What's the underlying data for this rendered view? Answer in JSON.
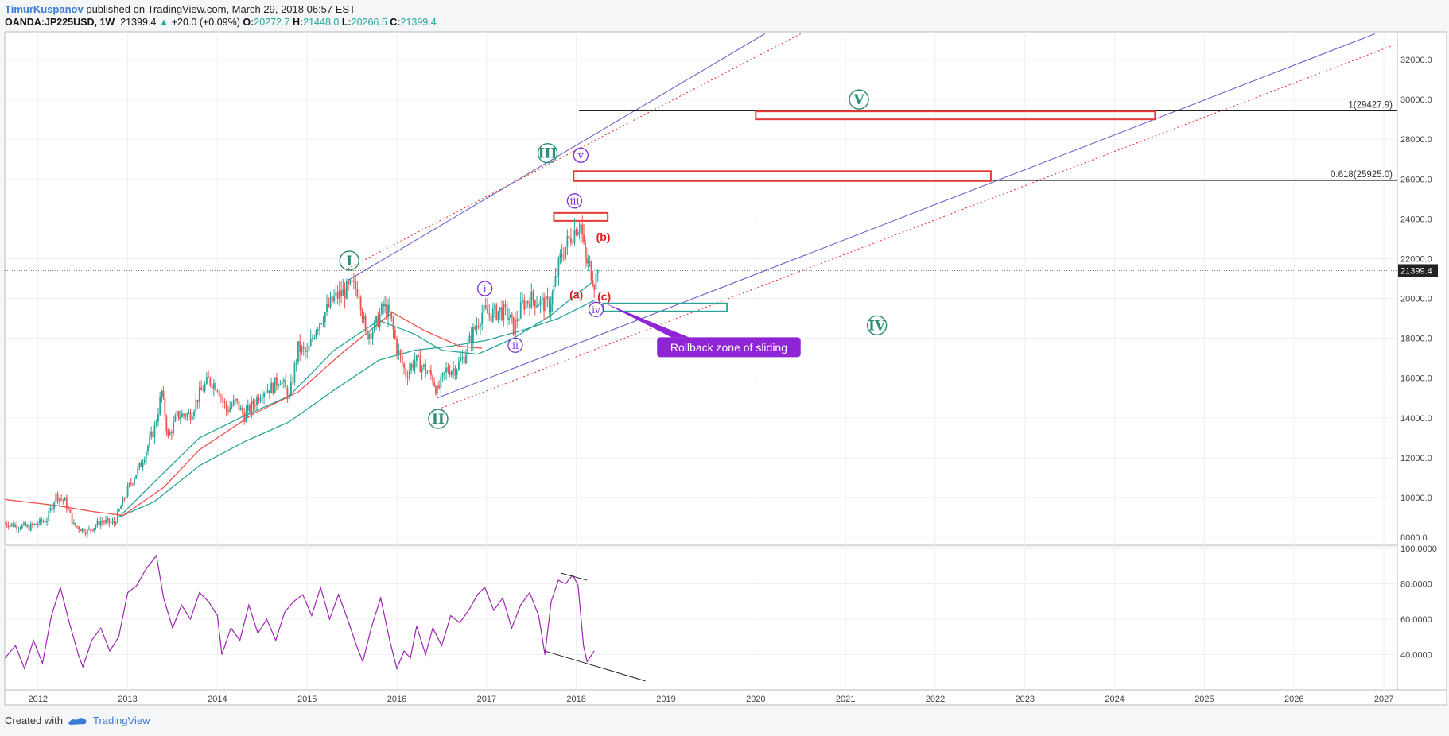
{
  "header": {
    "author": "TimurKuspanov",
    "published_text": "published on TradingView.com, March 29, 2018 06:57 EST",
    "symbol": "OANDA:JP225USD, 1W",
    "last": "21399.4",
    "change": "+20.0 (+0.09%)",
    "o_label": "O:",
    "o": "20272.7",
    "h_label": "H:",
    "h": "21448.0",
    "l_label": "L:",
    "l": "20266.5",
    "c_label": "C:",
    "c": "21399.4"
  },
  "footer": {
    "created_with": "Created with",
    "brand": "TradingView"
  },
  "colors": {
    "up": "#26a69a",
    "down": "#ef5350",
    "ma_fast": "#26a69a",
    "ma_slow": "#ef5350",
    "rsi": "#9c27b0",
    "channel": "#6c63c9",
    "channel_outer": "#e53935",
    "wave_green": "#2e8b75",
    "wave_purple": "#7b2fd6",
    "callout": "#8e24d6",
    "zone_green": "#26a69a",
    "zone_red": "#e53935"
  },
  "chart_data": {
    "type": "candlestick",
    "timeframe": "1W",
    "x_ticks": [
      "2012",
      "2013",
      "2014",
      "2015",
      "2016",
      "2017",
      "2018",
      "2019",
      "2020",
      "2021",
      "2022",
      "2023",
      "2024",
      "2025",
      "2026",
      "2027"
    ],
    "x_range": [
      2011.63,
      2027.15
    ],
    "price_axis": {
      "ylim": [
        7600,
        33400
      ],
      "ticks": [
        "8000.0",
        "10000.0",
        "12000.0",
        "14000.0",
        "16000.0",
        "18000.0",
        "20000.0",
        "22000.0",
        "24000.0",
        "26000.0",
        "28000.0",
        "30000.0",
        "32000.0"
      ]
    },
    "last_price_label": "21399.4",
    "last_price": 21399.4,
    "price_path": [
      [
        2011.63,
        8700
      ],
      [
        2011.9,
        8500
      ],
      [
        2012.1,
        8900
      ],
      [
        2012.2,
        10100
      ],
      [
        2012.3,
        9800
      ],
      [
        2012.4,
        8600
      ],
      [
        2012.55,
        8300
      ],
      [
        2012.7,
        8800
      ],
      [
        2012.85,
        8700
      ],
      [
        2013.0,
        10400
      ],
      [
        2013.15,
        11700
      ],
      [
        2013.3,
        13500
      ],
      [
        2013.38,
        15300
      ],
      [
        2013.45,
        13000
      ],
      [
        2013.55,
        14100
      ],
      [
        2013.7,
        14200
      ],
      [
        2013.8,
        15200
      ],
      [
        2013.9,
        15900
      ],
      [
        2014.0,
        15600
      ],
      [
        2014.1,
        14400
      ],
      [
        2014.2,
        14800
      ],
      [
        2014.3,
        14100
      ],
      [
        2014.4,
        14700
      ],
      [
        2014.5,
        15400
      ],
      [
        2014.6,
        15500
      ],
      [
        2014.7,
        16000
      ],
      [
        2014.8,
        15000
      ],
      [
        2014.9,
        17500
      ],
      [
        2015.0,
        17200
      ],
      [
        2015.1,
        18600
      ],
      [
        2015.2,
        19300
      ],
      [
        2015.3,
        20000
      ],
      [
        2015.4,
        20300
      ],
      [
        2015.5,
        20600
      ],
      [
        2015.58,
        20400
      ],
      [
        2015.65,
        18200
      ],
      [
        2015.75,
        18500
      ],
      [
        2015.85,
        19600
      ],
      [
        2015.92,
        19200
      ],
      [
        2016.0,
        17500
      ],
      [
        2016.1,
        16200
      ],
      [
        2016.2,
        16900
      ],
      [
        2016.3,
        16500
      ],
      [
        2016.4,
        16000
      ],
      [
        2016.45,
        15300
      ],
      [
        2016.55,
        16400
      ],
      [
        2016.65,
        16500
      ],
      [
        2016.75,
        17100
      ],
      [
        2016.85,
        18300
      ],
      [
        2016.95,
        19300
      ],
      [
        2017.05,
        19200
      ],
      [
        2017.15,
        19400
      ],
      [
        2017.25,
        19100
      ],
      [
        2017.3,
        18500
      ],
      [
        2017.4,
        19700
      ],
      [
        2017.5,
        20000
      ],
      [
        2017.6,
        19800
      ],
      [
        2017.7,
        19600
      ],
      [
        2017.75,
        20500
      ],
      [
        2017.82,
        22000
      ],
      [
        2017.9,
        22800
      ],
      [
        2018.0,
        23600
      ],
      [
        2018.05,
        23700
      ],
      [
        2018.1,
        21900
      ],
      [
        2018.15,
        21600
      ],
      [
        2018.2,
        20800
      ],
      [
        2018.24,
        21399.4
      ]
    ],
    "moving_averages": [
      {
        "name": "",
        "color": "#26a69a",
        "points": [
          [
            2012.9,
            9000
          ],
          [
            2013.3,
            10800
          ],
          [
            2013.8,
            13000
          ],
          [
            2014.3,
            14100
          ],
          [
            2014.8,
            15100
          ],
          [
            2015.3,
            17400
          ],
          [
            2015.8,
            18900
          ],
          [
            2016.2,
            18200
          ],
          [
            2016.5,
            17400
          ],
          [
            2016.9,
            17200
          ],
          [
            2017.3,
            18000
          ],
          [
            2017.7,
            19100
          ],
          [
            2018.0,
            20200
          ],
          [
            2018.2,
            20900
          ]
        ]
      },
      {
        "name": "",
        "color": "#26a69a",
        "points": [
          [
            2012.9,
            9000
          ],
          [
            2013.3,
            9800
          ],
          [
            2013.8,
            11600
          ],
          [
            2014.3,
            12800
          ],
          [
            2014.8,
            13800
          ],
          [
            2015.3,
            15400
          ],
          [
            2015.8,
            16900
          ],
          [
            2016.2,
            17400
          ],
          [
            2016.6,
            17600
          ],
          [
            2017.0,
            17900
          ],
          [
            2017.4,
            18400
          ],
          [
            2017.8,
            19000
          ],
          [
            2018.2,
            19900
          ]
        ]
      },
      {
        "name": "",
        "color": "#ef5350",
        "points": [
          [
            2011.63,
            9900
          ],
          [
            2012.2,
            9600
          ],
          [
            2012.6,
            9300
          ],
          [
            2012.95,
            9100
          ],
          [
            2013.4,
            10500
          ],
          [
            2013.8,
            12400
          ],
          [
            2014.4,
            14200
          ],
          [
            2014.9,
            15300
          ],
          [
            2015.4,
            17300
          ],
          [
            2015.95,
            19300
          ],
          [
            2016.3,
            18400
          ],
          [
            2016.7,
            17600
          ],
          [
            2016.95,
            17500
          ]
        ]
      }
    ],
    "fib_levels": [
      {
        "label": "1(29427.9)",
        "value": 29427.9,
        "x_from": 2018.03
      },
      {
        "label": "0.618(25925.0)",
        "value": 25925.0,
        "x_from": 2018.03
      }
    ],
    "channels": [
      {
        "color": "#6c63c9",
        "style": "solid",
        "from": [
          2015.45,
          20900
        ],
        "to": [
          2020.1,
          33300
        ]
      },
      {
        "color": "#6c63c9",
        "style": "solid",
        "from": [
          2016.45,
          15000
        ],
        "to": [
          2026.9,
          33300
        ]
      },
      {
        "color": "#e53935",
        "style": "dotted",
        "from": [
          2015.45,
          21500
        ],
        "to": [
          2020.5,
          33300
        ]
      },
      {
        "color": "#e53935",
        "style": "dotted",
        "from": [
          2016.5,
          14500
        ],
        "to": [
          2027.15,
          32800
        ]
      }
    ],
    "zones": [
      {
        "color": "#e53935",
        "x": [
          2020.0,
          2024.45
        ],
        "y": [
          29000,
          29400
        ]
      },
      {
        "color": "#e53935",
        "x": [
          2017.97,
          2022.62
        ],
        "y": [
          25900,
          26400
        ]
      },
      {
        "color": "#e53935",
        "x": [
          2017.75,
          2018.35
        ],
        "y": [
          23900,
          24300
        ]
      },
      {
        "color": "#26a69a",
        "x": [
          2018.3,
          2019.68
        ],
        "y": [
          19350,
          19750
        ]
      }
    ],
    "wave_labels": [
      {
        "text": "I",
        "style": "circle-green",
        "x": 2015.47,
        "y": 21900
      },
      {
        "text": "II",
        "style": "circle-green",
        "x": 2016.46,
        "y": 13950
      },
      {
        "text": "III",
        "style": "circle-green",
        "x": 2017.68,
        "y": 27300
      },
      {
        "text": "IV",
        "style": "circle-green",
        "x": 2021.35,
        "y": 18650
      },
      {
        "text": "V",
        "style": "circle-green",
        "x": 2021.15,
        "y": 30000
      },
      {
        "text": "i",
        "style": "circle-purple",
        "x": 2016.98,
        "y": 20500
      },
      {
        "text": "ii",
        "style": "circle-purple",
        "x": 2017.32,
        "y": 17650
      },
      {
        "text": "iii",
        "style": "circle-purple",
        "x": 2017.98,
        "y": 24900
      },
      {
        "text": "iv",
        "style": "circle-purple",
        "x": 2018.22,
        "y": 19450
      },
      {
        "text": "v",
        "style": "circle-purple",
        "x": 2018.05,
        "y": 27200
      },
      {
        "text": "(a)",
        "style": "red",
        "x": 2018.0,
        "y": 20000
      },
      {
        "text": "(b)",
        "style": "red",
        "x": 2018.3,
        "y": 22900
      },
      {
        "text": "(c)",
        "style": "red",
        "x": 2018.31,
        "y": 19900
      }
    ],
    "callout": {
      "text": "Rollback zone of sliding",
      "anchor": [
        2018.3,
        19800
      ],
      "box_x": [
        2018.9,
        2020.5
      ],
      "box_y": [
        17050,
        18050
      ]
    },
    "rsi": {
      "ticks": [
        "100.0000",
        "80.0000",
        "60.0000",
        "40.0000"
      ],
      "ylim": [
        20,
        100
      ],
      "values": [
        [
          2011.63,
          38
        ],
        [
          2011.75,
          45
        ],
        [
          2011.85,
          32
        ],
        [
          2011.95,
          48
        ],
        [
          2012.05,
          35
        ],
        [
          2012.15,
          62
        ],
        [
          2012.25,
          78
        ],
        [
          2012.35,
          58
        ],
        [
          2012.45,
          40
        ],
        [
          2012.5,
          33
        ],
        [
          2012.6,
          48
        ],
        [
          2012.7,
          55
        ],
        [
          2012.8,
          42
        ],
        [
          2012.9,
          50
        ],
        [
          2013.0,
          75
        ],
        [
          2013.1,
          79
        ],
        [
          2013.2,
          88
        ],
        [
          2013.32,
          96
        ],
        [
          2013.4,
          72
        ],
        [
          2013.5,
          55
        ],
        [
          2013.6,
          68
        ],
        [
          2013.7,
          60
        ],
        [
          2013.8,
          75
        ],
        [
          2013.9,
          70
        ],
        [
          2014.0,
          62
        ],
        [
          2014.05,
          40
        ],
        [
          2014.15,
          55
        ],
        [
          2014.25,
          48
        ],
        [
          2014.35,
          68
        ],
        [
          2014.45,
          52
        ],
        [
          2014.55,
          60
        ],
        [
          2014.65,
          48
        ],
        [
          2014.75,
          64
        ],
        [
          2014.85,
          70
        ],
        [
          2014.95,
          74
        ],
        [
          2015.05,
          62
        ],
        [
          2015.15,
          78
        ],
        [
          2015.25,
          60
        ],
        [
          2015.35,
          74
        ],
        [
          2015.45,
          60
        ],
        [
          2015.55,
          45
        ],
        [
          2015.62,
          36
        ],
        [
          2015.72,
          56
        ],
        [
          2015.82,
          72
        ],
        [
          2015.92,
          48
        ],
        [
          2016.0,
          32
        ],
        [
          2016.08,
          42
        ],
        [
          2016.15,
          38
        ],
        [
          2016.22,
          56
        ],
        [
          2016.32,
          40
        ],
        [
          2016.4,
          55
        ],
        [
          2016.5,
          45
        ],
        [
          2016.6,
          62
        ],
        [
          2016.7,
          58
        ],
        [
          2016.8,
          65
        ],
        [
          2016.9,
          74
        ],
        [
          2016.98,
          78
        ],
        [
          2017.08,
          65
        ],
        [
          2017.18,
          72
        ],
        [
          2017.28,
          55
        ],
        [
          2017.38,
          68
        ],
        [
          2017.48,
          75
        ],
        [
          2017.58,
          62
        ],
        [
          2017.65,
          40
        ],
        [
          2017.72,
          70
        ],
        [
          2017.8,
          82
        ],
        [
          2017.88,
          80
        ],
        [
          2017.96,
          85
        ],
        [
          2018.02,
          79
        ],
        [
          2018.08,
          45
        ],
        [
          2018.12,
          36
        ],
        [
          2018.2,
          42
        ]
      ],
      "lines": [
        {
          "from": [
            2017.83,
            86
          ],
          "to": [
            2018.12,
            82
          ]
        },
        {
          "from": [
            2017.65,
            42
          ],
          "to": [
            2018.77,
            25
          ]
        }
      ]
    }
  }
}
